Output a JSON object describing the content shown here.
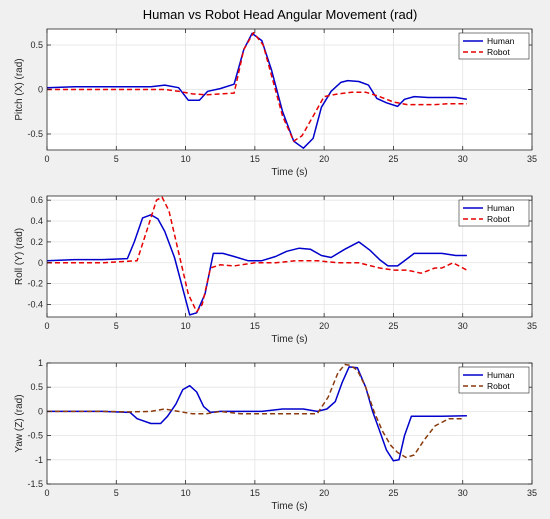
{
  "figure": {
    "title": "Human vs Robot Head Angular Movement (rad)"
  },
  "chart_data": [
    {
      "type": "line",
      "title": "Human vs Robot Head Angular Movement (rad)",
      "xlabel": "Time (s)",
      "ylabel": "Pitch (X) (rad)",
      "xlim": [
        0,
        35
      ],
      "ylim": [
        -0.68,
        0.68
      ],
      "xticks": [
        0,
        5,
        10,
        15,
        20,
        25,
        30,
        35
      ],
      "yticks": [
        -0.5,
        0,
        0.5
      ],
      "grid": true,
      "legend_position": "top-right",
      "series": [
        {
          "name": "Human",
          "color": "#0000cc",
          "dash": "solid",
          "x": [
            0,
            2,
            4,
            6,
            7.5,
            8.5,
            9.5,
            10.2,
            11,
            11.6,
            12.5,
            13.5,
            14.2,
            14.8,
            15.5,
            16.2,
            17,
            17.8,
            18.5,
            19.2,
            19.8,
            20.5,
            21.2,
            21.7,
            22.5,
            23.2,
            23.8,
            24.5,
            25.3,
            25.8,
            26.5,
            27.5,
            28.5,
            29.5,
            30.3
          ],
          "y": [
            0.02,
            0.03,
            0.03,
            0.03,
            0.03,
            0.05,
            0.02,
            -0.12,
            -0.12,
            -0.02,
            0.01,
            0.06,
            0.45,
            0.63,
            0.55,
            0.22,
            -0.25,
            -0.58,
            -0.66,
            -0.55,
            -0.2,
            -0.02,
            0.08,
            0.1,
            0.09,
            0.05,
            -0.1,
            -0.15,
            -0.19,
            -0.11,
            -0.08,
            -0.09,
            -0.09,
            -0.09,
            -0.11
          ]
        },
        {
          "name": "Robot",
          "color": "#e60000",
          "dash": "dashed",
          "x": [
            0,
            2,
            4,
            6,
            7,
            8.5,
            9.5,
            10.5,
            11.5,
            12.5,
            13.5,
            14.2,
            14.9,
            15.6,
            16.3,
            17,
            17.8,
            18.4,
            19.2,
            20,
            21,
            22,
            23,
            24,
            25,
            26,
            27,
            28,
            29,
            30.3
          ],
          "y": [
            0.0,
            0.0,
            0.0,
            0.0,
            0.0,
            0.0,
            -0.02,
            -0.05,
            -0.06,
            -0.05,
            -0.04,
            0.45,
            0.64,
            0.5,
            0.1,
            -0.3,
            -0.58,
            -0.52,
            -0.3,
            -0.08,
            -0.05,
            -0.03,
            -0.03,
            -0.08,
            -0.14,
            -0.17,
            -0.17,
            -0.17,
            -0.16,
            -0.16
          ]
        }
      ]
    },
    {
      "type": "line",
      "xlabel": "Time (s)",
      "ylabel": "Roll (Y) (rad)",
      "xlim": [
        0,
        35
      ],
      "ylim": [
        -0.52,
        0.64
      ],
      "xticks": [
        0,
        5,
        10,
        15,
        20,
        25,
        30,
        35
      ],
      "yticks": [
        -0.4,
        -0.2,
        0,
        0.2,
        0.4,
        0.6
      ],
      "grid": true,
      "legend_position": "top-right",
      "series": [
        {
          "name": "Human",
          "color": "#0000cc",
          "dash": "solid",
          "x": [
            0,
            2,
            4,
            5.8,
            6.3,
            6.9,
            7.5,
            8.0,
            8.5,
            9.2,
            9.8,
            10.3,
            10.8,
            11.4,
            12.0,
            12.7,
            13.5,
            14.5,
            15.5,
            16.5,
            17.3,
            18.2,
            19.0,
            19.8,
            20.5,
            21.5,
            22.5,
            23.3,
            24.0,
            24.6,
            25.3,
            26.0,
            26.5,
            27.5,
            28.5,
            29.5,
            30.3
          ],
          "y": [
            0.02,
            0.03,
            0.03,
            0.04,
            0.2,
            0.43,
            0.46,
            0.42,
            0.3,
            0.05,
            -0.25,
            -0.5,
            -0.48,
            -0.3,
            0.09,
            0.09,
            0.06,
            0.02,
            0.02,
            0.06,
            0.11,
            0.14,
            0.13,
            0.07,
            0.05,
            0.13,
            0.2,
            0.12,
            0.03,
            -0.03,
            -0.03,
            0.04,
            0.09,
            0.09,
            0.09,
            0.07,
            0.07
          ]
        },
        {
          "name": "Robot",
          "color": "#e60000",
          "dash": "dashed",
          "x": [
            0,
            2,
            4,
            6.5,
            7.3,
            7.9,
            8.3,
            8.8,
            9.5,
            10.2,
            10.8,
            11.2,
            11.8,
            12.5,
            13.5,
            15,
            16.5,
            18,
            19.5,
            21,
            22.5,
            24,
            25,
            26,
            27,
            28,
            28.5,
            29.3,
            30.3
          ],
          "y": [
            0.0,
            0.0,
            0.0,
            0.02,
            0.35,
            0.6,
            0.63,
            0.5,
            0.1,
            -0.3,
            -0.47,
            -0.4,
            -0.05,
            -0.02,
            -0.03,
            0.0,
            0.0,
            0.02,
            0.02,
            0.0,
            0.0,
            -0.05,
            -0.07,
            -0.07,
            -0.1,
            -0.05,
            -0.05,
            0.0,
            -0.07
          ]
        }
      ]
    },
    {
      "type": "line",
      "xlabel": "Time (s)",
      "ylabel": "Yaw (Z) (rad)",
      "xlim": [
        0,
        35
      ],
      "ylim": [
        -1.5,
        1
      ],
      "xticks": [
        0,
        5,
        10,
        15,
        20,
        25,
        30,
        35
      ],
      "yticks": [
        -1.5,
        -1,
        -0.5,
        0,
        0.5,
        1
      ],
      "grid": true,
      "legend_position": "top-right",
      "series": [
        {
          "name": "Human",
          "color": "#0000cc",
          "dash": "solid",
          "x": [
            0,
            2,
            4,
            6,
            6.5,
            7.5,
            8.2,
            8.7,
            9.3,
            9.8,
            10.3,
            10.8,
            11.3,
            11.8,
            12.5,
            14,
            15.5,
            17,
            18.5,
            19.5,
            20.2,
            20.8,
            21.3,
            21.8,
            22.4,
            23.0,
            23.5,
            24.0,
            24.5,
            25.0,
            25.4,
            25.8,
            26.3,
            27,
            28.5,
            30.3
          ],
          "y": [
            0.0,
            0.0,
            0.0,
            -0.02,
            -0.15,
            -0.25,
            -0.25,
            -0.1,
            0.15,
            0.45,
            0.53,
            0.4,
            0.1,
            -0.02,
            0.0,
            0.0,
            0.0,
            0.05,
            0.05,
            0.0,
            0.05,
            0.2,
            0.6,
            0.92,
            0.9,
            0.5,
            0.0,
            -0.4,
            -0.8,
            -1.02,
            -1.0,
            -0.5,
            -0.1,
            -0.1,
            -0.1,
            -0.09
          ]
        },
        {
          "name": "Robot",
          "color": "#8b3a0e",
          "dash": "dashed",
          "x": [
            0,
            2,
            4,
            6,
            7.5,
            8.5,
            9.5,
            10.5,
            11.5,
            12.5,
            14,
            15.5,
            17,
            18.5,
            19.5,
            20.3,
            21.0,
            21.5,
            21.9,
            22.4,
            23.0,
            23.6,
            24.2,
            24.8,
            25.3,
            25.9,
            26.5,
            27.2,
            28.0,
            29.0,
            30.0
          ],
          "y": [
            0.0,
            0.0,
            0.0,
            -0.01,
            0.0,
            0.05,
            0.0,
            -0.05,
            -0.05,
            0.0,
            -0.05,
            -0.05,
            -0.05,
            -0.05,
            -0.05,
            0.3,
            0.8,
            0.97,
            0.95,
            0.85,
            0.5,
            0.0,
            -0.4,
            -0.7,
            -0.85,
            -0.95,
            -0.9,
            -0.6,
            -0.3,
            -0.15,
            -0.15
          ]
        }
      ]
    }
  ]
}
